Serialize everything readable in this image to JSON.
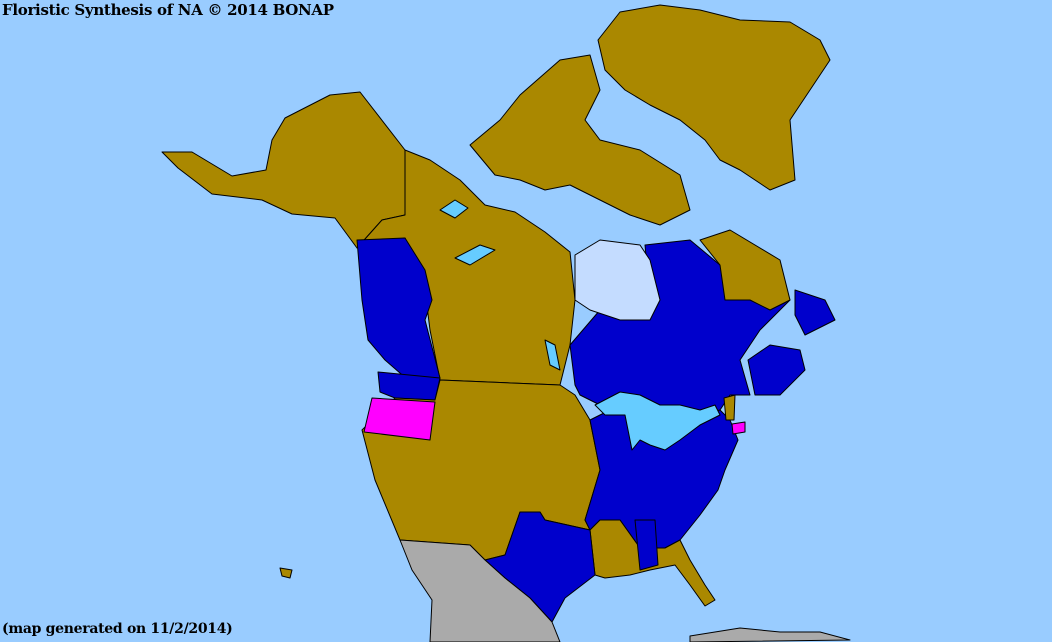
{
  "header": {
    "title": "Floristic Synthesis of NA © 2014  BONAP"
  },
  "footer": {
    "note": "(map generated on 11/2/2014)"
  },
  "colors": {
    "ocean": "#99ccff",
    "hudson_bay": "#c4dcff",
    "lakes": "#66ccff",
    "present_not_rare": "#aa8800",
    "native": "#0000cc",
    "rare_or_highlighted": "#ff00ff",
    "no_data": "#aaaaaa"
  },
  "regions": {
    "blue": [
      "British Columbia",
      "Washington",
      "Ontario",
      "Quebec",
      "Newfoundland",
      "New Brunswick",
      "Nova Scotia",
      "Texas",
      "Minnesota-east states",
      "Alabama",
      "North Carolina",
      "South Carolina",
      "Virginia"
    ],
    "magenta": [
      "Oregon",
      "Connecticut"
    ],
    "olive": [
      "Greenland",
      "Alaska",
      "Yukon",
      "Northwest Territories",
      "Nunavut",
      "Alberta",
      "Saskatchewan",
      "Manitoba",
      "Labrador",
      "western US states",
      "Great Plains states",
      "Louisiana",
      "Mississippi",
      "Georgia",
      "Florida",
      "Vermont"
    ],
    "gray": [
      "Mexico",
      "Caribbean"
    ]
  }
}
